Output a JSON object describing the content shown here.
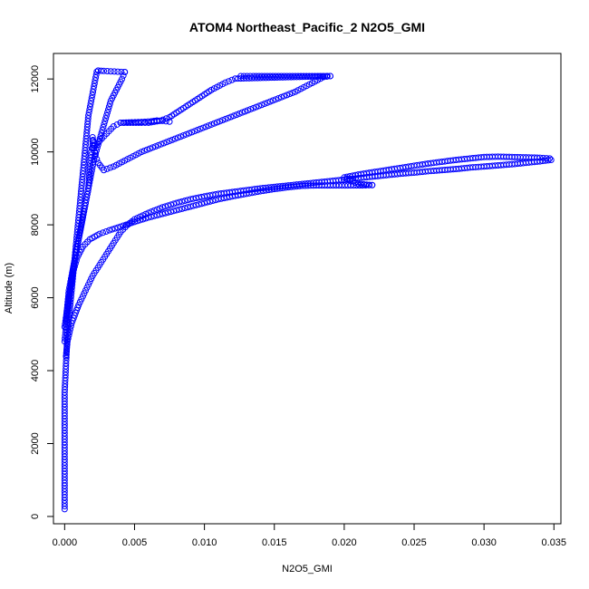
{
  "chart_data": {
    "type": "scatter",
    "title": "ATOM4 Northeast_Pacific_2 N2O5_GMI",
    "xlabel": "N2O5_GMI",
    "ylabel": "Altitude (m)",
    "xlim": [
      -0.0008,
      0.0355
    ],
    "ylim": [
      -200,
      12700
    ],
    "xticks": [
      0.0,
      0.005,
      0.01,
      0.015,
      0.02,
      0.025,
      0.03,
      0.035
    ],
    "xtick_labels": [
      "0.000",
      "0.005",
      "0.010",
      "0.015",
      "0.020",
      "0.025",
      "0.030",
      "0.035"
    ],
    "yticks": [
      0,
      2000,
      4000,
      6000,
      8000,
      10000,
      12000
    ],
    "ytick_labels": [
      "0",
      "2000",
      "4000",
      "6000",
      "8000",
      "10000",
      "12000"
    ],
    "marker": "open-circle",
    "color": "#0000ff",
    "grid": false,
    "series": [
      {
        "values": [
          [
            0.0,
            200
          ],
          [
            0.0,
            600
          ],
          [
            0.0,
            1000
          ],
          [
            0.0,
            1400
          ],
          [
            0.0,
            1800
          ],
          [
            0.0,
            2200
          ],
          [
            0.0,
            2600
          ],
          [
            0.0,
            3000
          ],
          [
            0.0,
            3400
          ],
          [
            5e-05,
            3800
          ],
          [
            0.0001,
            4200
          ],
          [
            0.00015,
            4600
          ],
          [
            0.0002,
            5000
          ],
          [
            0.0003,
            5400
          ],
          [
            0.0004,
            5800
          ],
          [
            0.0005,
            6200
          ],
          [
            0.0006,
            6600
          ],
          [
            0.0007,
            7000
          ],
          [
            0.0008,
            7400
          ],
          [
            0.0009,
            7800
          ],
          [
            0.001,
            8200
          ],
          [
            0.0011,
            8600
          ],
          [
            0.0012,
            9000
          ],
          [
            0.0013,
            9400
          ],
          [
            0.0014,
            9800
          ],
          [
            0.0015,
            10200
          ],
          [
            0.0016,
            10600
          ],
          [
            0.0017,
            11000
          ],
          [
            0.0019,
            11400
          ],
          [
            0.0021,
            11800
          ],
          [
            0.0023,
            12200
          ],
          [
            0.0024,
            12230
          ],
          [
            0.0028,
            12220
          ],
          [
            0.0033,
            12210
          ],
          [
            0.0038,
            12200
          ],
          [
            0.0043,
            12190
          ]
        ]
      },
      {
        "values": [
          [
            0.0043,
            12190
          ],
          [
            0.0041,
            12000
          ],
          [
            0.0037,
            11700
          ],
          [
            0.0033,
            11400
          ],
          [
            0.003,
            11000
          ],
          [
            0.0027,
            10600
          ],
          [
            0.0024,
            10200
          ],
          [
            0.0021,
            9800
          ],
          [
            0.0019,
            9400
          ],
          [
            0.0017,
            9000
          ],
          [
            0.0015,
            8600
          ],
          [
            0.0013,
            8200
          ],
          [
            0.0011,
            7800
          ],
          [
            0.0009,
            7400
          ],
          [
            0.0007,
            7000
          ],
          [
            0.0005,
            6600
          ],
          [
            0.0003,
            6200
          ],
          [
            0.0002,
            5800
          ],
          [
            0.0001,
            5400
          ]
        ]
      },
      {
        "values": [
          [
            0.0,
            5200
          ],
          [
            0.0003,
            6000
          ],
          [
            0.0006,
            6800
          ],
          [
            0.0009,
            7400
          ],
          [
            0.0012,
            8000
          ],
          [
            0.0015,
            8600
          ],
          [
            0.0017,
            9000
          ],
          [
            0.0018,
            9600
          ],
          [
            0.0019,
            10000
          ],
          [
            0.002,
            10200
          ],
          [
            0.002,
            10400
          ],
          [
            0.0021,
            10100
          ],
          [
            0.0022,
            9900
          ],
          [
            0.0024,
            9700
          ],
          [
            0.0028,
            9500
          ],
          [
            0.0035,
            9600
          ],
          [
            0.0045,
            9800
          ],
          [
            0.0055,
            10000
          ],
          [
            0.0065,
            10150
          ],
          [
            0.0075,
            10300
          ],
          [
            0.0085,
            10450
          ],
          [
            0.0095,
            10600
          ],
          [
            0.0105,
            10750
          ],
          [
            0.0115,
            10900
          ],
          [
            0.0125,
            11050
          ],
          [
            0.0135,
            11200
          ],
          [
            0.0145,
            11350
          ],
          [
            0.0155,
            11500
          ],
          [
            0.0165,
            11650
          ],
          [
            0.0175,
            11850
          ],
          [
            0.0185,
            12050
          ],
          [
            0.019,
            12080
          ]
        ]
      },
      {
        "values": [
          [
            0.0126,
            12080
          ],
          [
            0.0135,
            12080
          ],
          [
            0.0145,
            12080
          ],
          [
            0.0155,
            12080
          ],
          [
            0.0165,
            12080
          ],
          [
            0.0175,
            12080
          ],
          [
            0.0185,
            12080
          ],
          [
            0.019,
            12080
          ],
          [
            0.0122,
            12010
          ],
          [
            0.0115,
            11900
          ],
          [
            0.0105,
            11700
          ],
          [
            0.0095,
            11450
          ],
          [
            0.0085,
            11200
          ],
          [
            0.0075,
            10950
          ],
          [
            0.0068,
            10850
          ],
          [
            0.006,
            10800
          ],
          [
            0.0055,
            10800
          ],
          [
            0.0045,
            10800
          ],
          [
            0.004,
            10800
          ],
          [
            0.0035,
            10700
          ],
          [
            0.003,
            10500
          ],
          [
            0.0025,
            10300
          ],
          [
            0.002,
            10100
          ]
        ]
      },
      {
        "values": [
          [
            0.004,
            10800
          ],
          [
            0.0048,
            10810
          ],
          [
            0.0055,
            10820
          ],
          [
            0.0062,
            10840
          ],
          [
            0.0066,
            10860
          ],
          [
            0.007,
            10850
          ],
          [
            0.0075,
            10830
          ]
        ]
      },
      {
        "values": [
          [
            0.0,
            4800
          ],
          [
            0.0002,
            5600
          ],
          [
            0.0004,
            6200
          ],
          [
            0.0006,
            6700
          ],
          [
            0.0009,
            7100
          ],
          [
            0.0013,
            7400
          ],
          [
            0.0018,
            7600
          ],
          [
            0.0025,
            7750
          ],
          [
            0.0032,
            7850
          ],
          [
            0.004,
            7950
          ],
          [
            0.005,
            8080
          ],
          [
            0.006,
            8200
          ],
          [
            0.007,
            8300
          ],
          [
            0.008,
            8400
          ],
          [
            0.009,
            8500
          ],
          [
            0.01,
            8600
          ],
          [
            0.011,
            8700
          ],
          [
            0.012,
            8780
          ],
          [
            0.013,
            8850
          ],
          [
            0.014,
            8920
          ],
          [
            0.015,
            8980
          ],
          [
            0.016,
            9030
          ],
          [
            0.017,
            9070
          ],
          [
            0.018,
            9080
          ],
          [
            0.019,
            9080
          ],
          [
            0.0213,
            9080
          ],
          [
            0.022,
            9090
          ]
        ]
      },
      {
        "values": [
          [
            0.022,
            9090
          ],
          [
            0.021,
            9120
          ],
          [
            0.02,
            9300
          ],
          [
            0.021,
            9380
          ],
          [
            0.022,
            9440
          ],
          [
            0.023,
            9500
          ],
          [
            0.024,
            9560
          ],
          [
            0.025,
            9620
          ],
          [
            0.026,
            9680
          ],
          [
            0.027,
            9730
          ],
          [
            0.028,
            9780
          ],
          [
            0.029,
            9820
          ],
          [
            0.03,
            9860
          ],
          [
            0.031,
            9870
          ],
          [
            0.032,
            9860
          ],
          [
            0.033,
            9850
          ],
          [
            0.034,
            9840
          ],
          [
            0.0347,
            9820
          ],
          [
            0.0348,
            9780
          ],
          [
            0.034,
            9740
          ],
          [
            0.033,
            9700
          ],
          [
            0.032,
            9660
          ],
          [
            0.031,
            9630
          ],
          [
            0.03,
            9600
          ],
          [
            0.029,
            9570
          ],
          [
            0.028,
            9530
          ],
          [
            0.027,
            9500
          ],
          [
            0.026,
            9470
          ],
          [
            0.025,
            9430
          ],
          [
            0.024,
            9400
          ],
          [
            0.023,
            9360
          ],
          [
            0.022,
            9320
          ],
          [
            0.021,
            9280
          ],
          [
            0.02,
            9240
          ],
          [
            0.019,
            9200
          ],
          [
            0.018,
            9160
          ],
          [
            0.017,
            9120
          ],
          [
            0.016,
            9080
          ],
          [
            0.015,
            9040
          ],
          [
            0.014,
            9000
          ],
          [
            0.013,
            8950
          ],
          [
            0.012,
            8900
          ],
          [
            0.011,
            8850
          ],
          [
            0.01,
            8780
          ],
          [
            0.009,
            8700
          ],
          [
            0.008,
            8600
          ],
          [
            0.007,
            8480
          ],
          [
            0.006,
            8330
          ],
          [
            0.005,
            8150
          ],
          [
            0.0045,
            8000
          ],
          [
            0.004,
            7800
          ],
          [
            0.0035,
            7500
          ],
          [
            0.003,
            7200
          ],
          [
            0.0025,
            6900
          ],
          [
            0.002,
            6600
          ],
          [
            0.0015,
            6200
          ],
          [
            0.001,
            5800
          ],
          [
            0.0005,
            5300
          ],
          [
            0.0002,
            4800
          ],
          [
            0.0001,
            4400
          ]
        ]
      }
    ]
  }
}
